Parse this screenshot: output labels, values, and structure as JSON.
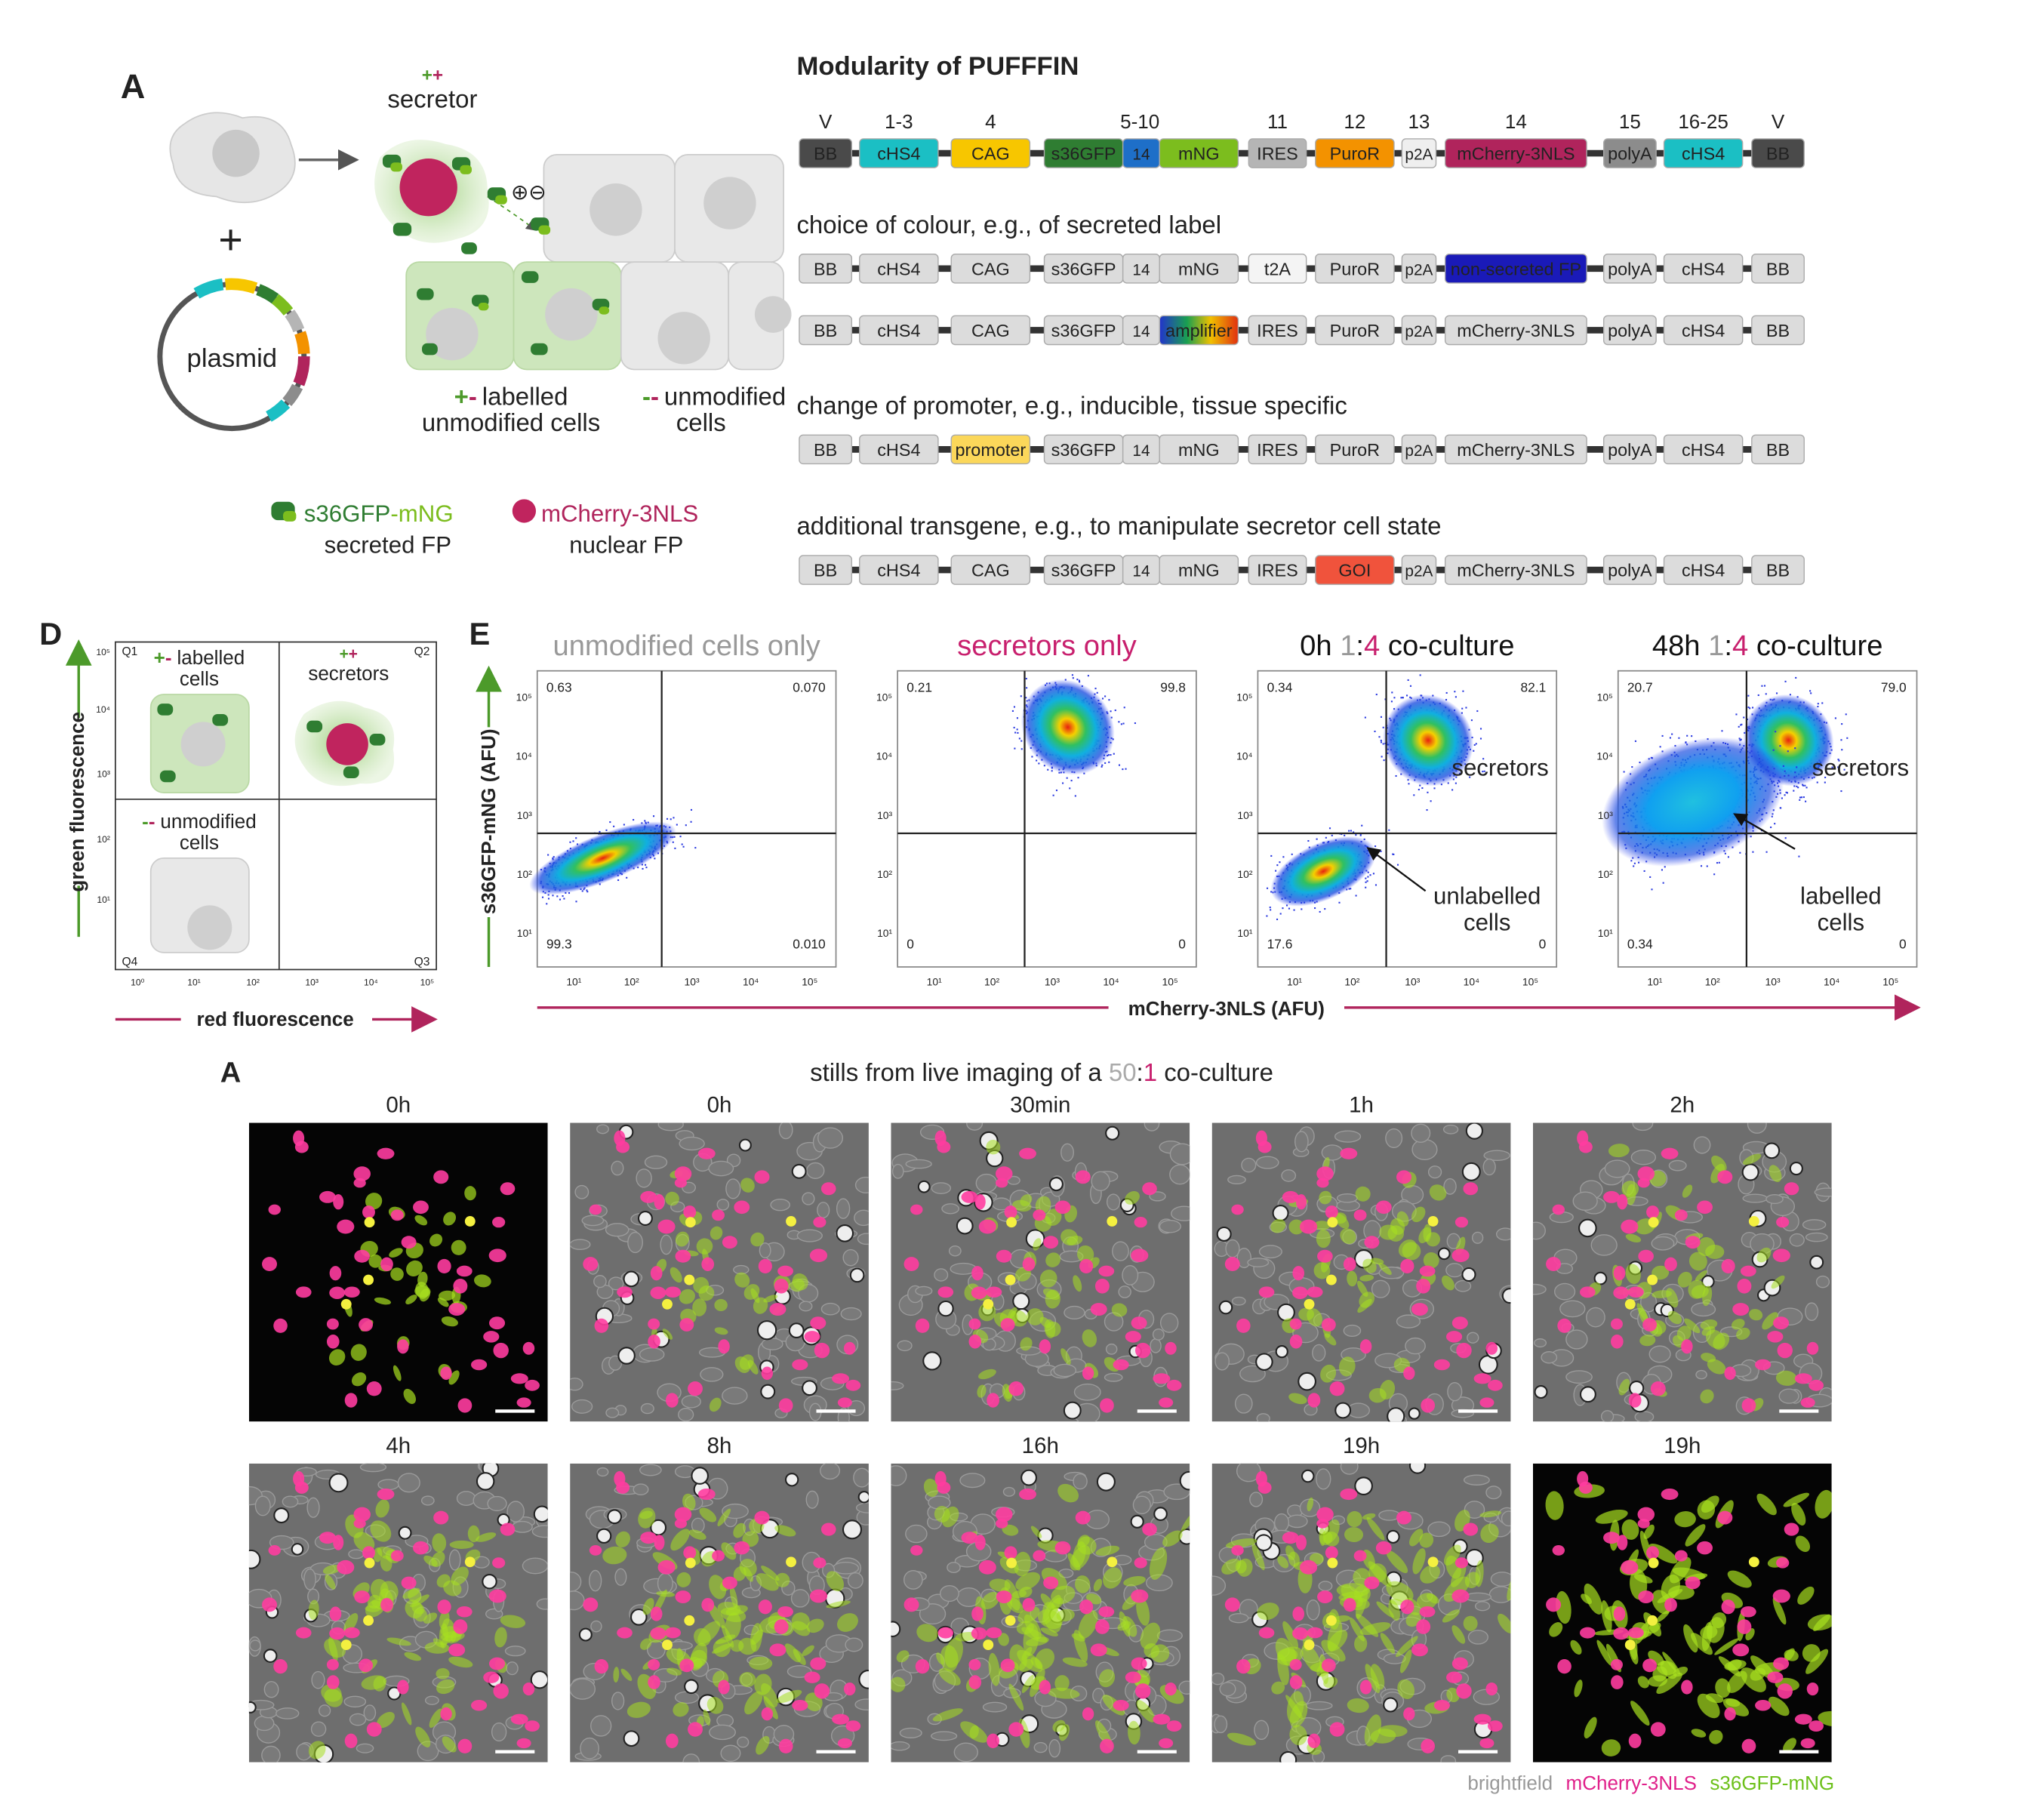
{
  "panel_a": {
    "label": "A",
    "secretor_signs": [
      "+",
      "+"
    ],
    "secretor": "secretor",
    "plus": "+",
    "plasmid": "plasmid",
    "charges": [
      "⊕",
      "⊖"
    ],
    "labelled_signs": [
      "+",
      "-"
    ],
    "labelled": "labelled",
    "labelled_2": "unmodified cells",
    "unmodified_signs": [
      "-",
      "-"
    ],
    "unmodified": "unmodified",
    "unmodified_2": "cells",
    "legend": [
      {
        "name": [
          "s36GFP",
          "-mNG"
        ],
        "caption": "secreted FP"
      },
      {
        "name": [
          "mCherry-3NLS"
        ],
        "caption": "nuclear FP"
      }
    ]
  },
  "modularity": {
    "title": "Modularity of PUFFFIN",
    "positions": [
      "V",
      "1-3",
      "4",
      "5-10",
      "11",
      "12",
      "13",
      "14",
      "15",
      "16-25",
      "V"
    ],
    "rows": [
      {
        "parts": [
          {
            "label": "BB",
            "color": "#4a4a4a"
          },
          {
            "label": "cHS4",
            "color": "#1bbfc4"
          },
          {
            "label": "CAG",
            "color": "#f7c600"
          },
          {
            "label": "s36GFP",
            "color": "#2f7d32"
          },
          {
            "label": "14",
            "color": "#1e6fc8"
          },
          {
            "label": "mNG",
            "color": "#7cbd1e"
          },
          {
            "label": "IRES",
            "color": "#b5b5b5"
          },
          {
            "label": "PuroR",
            "color": "#f39200"
          },
          {
            "label": "p2A",
            "color": "#efefef"
          },
          {
            "label": "mCherry-3NLS",
            "color": "#b0245c"
          },
          {
            "label": "polyA",
            "color": "#8c8c8c"
          },
          {
            "label": "cHS4",
            "color": "#1bbfc4"
          },
          {
            "label": "BB",
            "color": "#4a4a4a"
          }
        ]
      },
      {
        "caption": "choice of colour, e.g., of secreted label",
        "parts": [
          {
            "label": "BB"
          },
          {
            "label": "cHS4"
          },
          {
            "label": "CAG"
          },
          {
            "label": "s36GFP"
          },
          {
            "label": "14"
          },
          {
            "label": "mNG"
          },
          {
            "label": "t2A",
            "color": "#f4f4f4"
          },
          {
            "label": "PuroR"
          },
          {
            "label": "p2A"
          },
          {
            "label": "non-secreted FP",
            "color": "#1a1ab8"
          },
          {
            "label": "polyA"
          },
          {
            "label": "cHS4"
          },
          {
            "label": "BB"
          }
        ]
      },
      {
        "parts": [
          {
            "label": "BB"
          },
          {
            "label": "cHS4"
          },
          {
            "label": "CAG"
          },
          {
            "label": "s36GFP"
          },
          {
            "label": "14"
          },
          {
            "label": "amplifier",
            "color": "url(#amp)"
          },
          {
            "label": "IRES"
          },
          {
            "label": "PuroR"
          },
          {
            "label": "p2A"
          },
          {
            "label": "mCherry-3NLS"
          },
          {
            "label": "polyA"
          },
          {
            "label": "cHS4"
          },
          {
            "label": "BB"
          }
        ]
      },
      {
        "caption": "change of promoter, e.g., inducible, tissue specific",
        "parts": [
          {
            "label": "BB"
          },
          {
            "label": "cHS4"
          },
          {
            "label": "promoter",
            "color": "#fbd75a"
          },
          {
            "label": "s36GFP"
          },
          {
            "label": "14"
          },
          {
            "label": "mNG"
          },
          {
            "label": "IRES"
          },
          {
            "label": "PuroR"
          },
          {
            "label": "p2A"
          },
          {
            "label": "mCherry-3NLS"
          },
          {
            "label": "polyA"
          },
          {
            "label": "cHS4"
          },
          {
            "label": "BB"
          }
        ]
      },
      {
        "caption": "additional transgene, e.g., to manipulate secretor cell state",
        "parts": [
          {
            "label": "BB"
          },
          {
            "label": "cHS4"
          },
          {
            "label": "CAG"
          },
          {
            "label": "s36GFP"
          },
          {
            "label": "14"
          },
          {
            "label": "mNG"
          },
          {
            "label": "IRES"
          },
          {
            "label": "GOI",
            "color": "#f0533c"
          },
          {
            "label": "p2A"
          },
          {
            "label": "mCherry-3NLS"
          },
          {
            "label": "polyA"
          },
          {
            "label": "cHS4"
          },
          {
            "label": "BB"
          }
        ]
      }
    ]
  },
  "panel_d": {
    "label": "D",
    "quadrants": [
      "Q1",
      "Q2",
      "Q3",
      "Q4"
    ],
    "labelled_signs": [
      "+",
      "-"
    ],
    "labelled": [
      "labelled",
      "cells"
    ],
    "secretor_signs": [
      "+",
      "+"
    ],
    "secretors": "secretors",
    "unmodified_signs": [
      "-",
      "-"
    ],
    "unmodified": [
      "unmodified",
      "cells"
    ],
    "yticks": [
      "10⁵",
      "10⁴",
      "10³",
      "10²",
      "10¹"
    ],
    "xticks": [
      "10⁰",
      "10¹",
      "10²",
      "10³",
      "10⁴",
      "10⁵"
    ],
    "ylabel": "green fluorescence",
    "xlabel": "red fluorescence"
  },
  "panel_e": {
    "label": "E",
    "ylabel": "s36GFP-mNG (AFU)",
    "xlabel": "mCherry-3NLS (AFU)",
    "yticks": [
      "10⁵",
      "10⁴",
      "10³",
      "10²",
      "10¹"
    ],
    "xticks": [
      "10¹",
      "10²",
      "10³",
      "10⁴",
      "10⁵"
    ],
    "plots": [
      {
        "title": [
          "unmodified cells only"
        ],
        "quadrants": [
          "0.63",
          "0.070",
          "99.3",
          "0.010"
        ]
      },
      {
        "title": [
          "secretors only"
        ],
        "quadrants": [
          "0.21",
          "99.8",
          "0",
          "0"
        ]
      },
      {
        "title": [
          "0h ",
          "1",
          ":",
          "4",
          " co-culture"
        ],
        "quadrants": [
          "0.34",
          "82.1",
          "17.6",
          "0"
        ],
        "annotations": [
          "secretors",
          "unlabelled",
          "cells"
        ]
      },
      {
        "title": [
          "48h ",
          "1",
          ":",
          "4",
          " co-culture"
        ],
        "quadrants": [
          "20.7",
          "79.0",
          "0.34",
          "0"
        ],
        "annotations": [
          "secretors",
          "labelled",
          "cells"
        ]
      }
    ]
  },
  "imaging": {
    "label": "A",
    "title": [
      "stills from live imaging of a ",
      "50",
      ":",
      "1",
      " co-culture"
    ],
    "frames": [
      "0h",
      "0h",
      "30min",
      "1h",
      "2h",
      "4h",
      "8h",
      "16h",
      "19h",
      "19h"
    ],
    "legend": [
      "brightfield",
      "mCherry-3NLS",
      "s36GFP-mNG"
    ]
  }
}
